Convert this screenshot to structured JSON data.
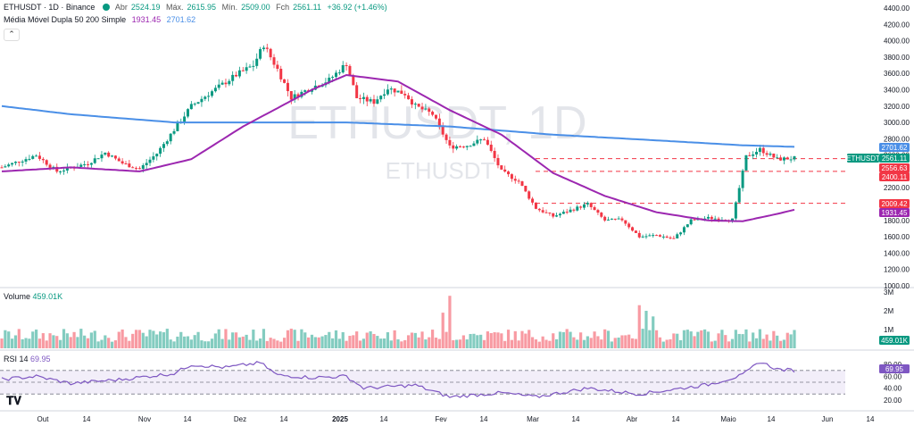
{
  "header": {
    "symbol": "ETHUSDT · 1D · Binance",
    "open_label": "Abr",
    "open": "2524.19",
    "high_label": "Máx.",
    "high": "2615.95",
    "low_label": "Mín.",
    "low": "2509.00",
    "close_label": "Fch",
    "close": "2561.11",
    "change": "+36.92 (+1.46%)",
    "indicator_name": "Média Móvel Dupla 50 200 Simple",
    "ma50_value": "1931.45",
    "ma200_value": "2701.62",
    "collapse_icon": "chevron-up-icon"
  },
  "watermark": {
    "title": "ETHUSDT, 1D",
    "subtitle": "ETHUSDT"
  },
  "volume_panel": {
    "label": "Volume",
    "value": "459.01K",
    "badge": "459.01K"
  },
  "rsi_panel": {
    "label": "RSI 14",
    "value": "69.95",
    "badge": "69.95"
  },
  "price_badges": [
    {
      "text": "2701.62",
      "color": "#4a8fe7"
    },
    {
      "text": "ETHUSDT",
      "color": "#089981"
    },
    {
      "text": "2561.11",
      "color": "#089981"
    },
    {
      "text": "2556.63",
      "color": "#f23645"
    },
    {
      "text": "2400.11",
      "color": "#f23645"
    },
    {
      "text": "2009.42",
      "color": "#f23645"
    },
    {
      "text": "1931.45",
      "color": "#9c27b0"
    }
  ],
  "colors": {
    "up": "#089981",
    "down": "#f23645",
    "ma50": "#9c27b0",
    "ma200": "#4a8fe7",
    "rsi": "#7e57c2"
  },
  "chart_data": {
    "type": "candlestick",
    "y_ticks": [
      "4400.00",
      "4200.00",
      "4000.00",
      "3800.00",
      "3600.00",
      "3400.00",
      "3200.00",
      "3000.00",
      "2800.00",
      "2600.00",
      "2400.00",
      "2200.00",
      "2000.00",
      "1800.00",
      "1600.00",
      "1400.00",
      "1200.00",
      "1000.00"
    ],
    "x_ticks": [
      "Out",
      "14",
      "Nov",
      "14",
      "Dez",
      "14",
      "2025",
      "14",
      "Fev",
      "14",
      "Mar",
      "14",
      "Abr",
      "14",
      "Maio",
      "14",
      "Jun",
      "14"
    ],
    "volume_ticks": [
      "3M",
      "2M",
      "1M"
    ],
    "rsi_ticks": [
      "80.00",
      "60.00",
      "40.00",
      "20.00"
    ],
    "ylim": [
      1000,
      4400
    ],
    "horizontal_levels": [
      2556.63,
      2400.11,
      2009.42
    ],
    "price_keypoints": [
      [
        0,
        2450
      ],
      [
        10,
        2600
      ],
      [
        16,
        2400
      ],
      [
        25,
        2500
      ],
      [
        30,
        2630
      ],
      [
        35,
        2500
      ],
      [
        40,
        2430
      ],
      [
        45,
        2620
      ],
      [
        55,
        3200
      ],
      [
        60,
        3350
      ],
      [
        68,
        3580
      ],
      [
        73,
        3700
      ],
      [
        76,
        3950
      ],
      [
        80,
        3650
      ],
      [
        84,
        3300
      ],
      [
        90,
        3430
      ],
      [
        95,
        3520
      ],
      [
        100,
        3720
      ],
      [
        103,
        3300
      ],
      [
        108,
        3250
      ],
      [
        112,
        3420
      ],
      [
        117,
        3350
      ],
      [
        120,
        3200
      ],
      [
        125,
        3100
      ],
      [
        130,
        2700
      ],
      [
        135,
        2720
      ],
      [
        140,
        2800
      ],
      [
        145,
        2400
      ],
      [
        150,
        2280
      ],
      [
        155,
        1950
      ],
      [
        160,
        1850
      ],
      [
        170,
        2000
      ],
      [
        175,
        1800
      ],
      [
        180,
        1810
      ],
      [
        185,
        1600
      ],
      [
        190,
        1620
      ],
      [
        195,
        1575
      ],
      [
        200,
        1800
      ],
      [
        205,
        1830
      ],
      [
        212,
        1810
      ],
      [
        216,
        2580
      ],
      [
        220,
        2670
      ],
      [
        225,
        2550
      ],
      [
        230,
        2561
      ]
    ],
    "ma50_keypoints": [
      [
        0,
        2400
      ],
      [
        20,
        2450
      ],
      [
        40,
        2400
      ],
      [
        55,
        2550
      ],
      [
        70,
        2950
      ],
      [
        90,
        3400
      ],
      [
        100,
        3580
      ],
      [
        115,
        3500
      ],
      [
        130,
        3150
      ],
      [
        145,
        2850
      ],
      [
        160,
        2380
      ],
      [
        175,
        2100
      ],
      [
        190,
        1900
      ],
      [
        205,
        1800
      ],
      [
        215,
        1790
      ],
      [
        225,
        1880
      ],
      [
        230,
        1931
      ]
    ],
    "ma200_keypoints": [
      [
        0,
        3200
      ],
      [
        20,
        3100
      ],
      [
        50,
        3000
      ],
      [
        100,
        3000
      ],
      [
        130,
        2950
      ],
      [
        160,
        2850
      ],
      [
        190,
        2780
      ],
      [
        215,
        2720
      ],
      [
        230,
        2701
      ]
    ],
    "rsi_keypoints": [
      [
        0,
        55
      ],
      [
        10,
        60
      ],
      [
        20,
        48
      ],
      [
        35,
        55
      ],
      [
        50,
        65
      ],
      [
        55,
        80
      ],
      [
        65,
        75
      ],
      [
        75,
        83
      ],
      [
        80,
        62
      ],
      [
        90,
        58
      ],
      [
        100,
        60
      ],
      [
        105,
        40
      ],
      [
        120,
        45
      ],
      [
        130,
        25
      ],
      [
        145,
        32
      ],
      [
        155,
        25
      ],
      [
        170,
        40
      ],
      [
        185,
        30
      ],
      [
        195,
        38
      ],
      [
        205,
        46
      ],
      [
        215,
        62
      ],
      [
        220,
        85
      ],
      [
        225,
        72
      ],
      [
        230,
        70
      ]
    ],
    "volume_spikes": {
      "130": 2.8,
      "128": 1.9,
      "185": 2.3,
      "187": 2.0,
      "189": 1.7
    }
  }
}
